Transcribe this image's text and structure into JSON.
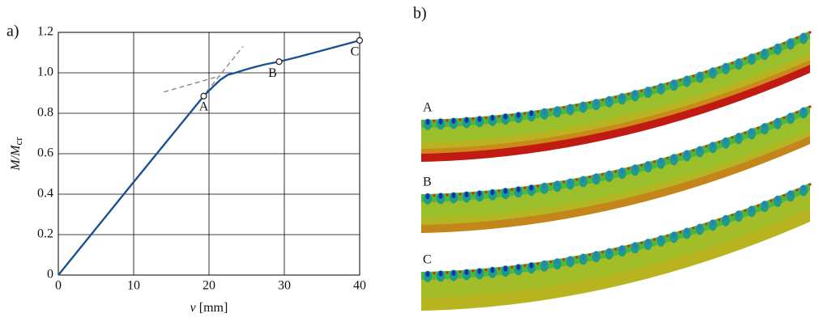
{
  "chart_data": {
    "type": "line",
    "panel_label": "a)",
    "xlabel_var": "v",
    "xlabel_unit": "[mm]",
    "ylabel_main": "M/M",
    "ylabel_sub": "cr",
    "xlim": [
      0,
      40
    ],
    "ylim": [
      0,
      1.2
    ],
    "xticks": [
      0,
      10,
      20,
      30,
      40
    ],
    "yticks": [
      0,
      0.2,
      0.4,
      0.6,
      0.8,
      {
        "value": 1,
        "label": "1.0"
      },
      1.2
    ],
    "grid": true,
    "series": [
      {
        "color": "#1a5190",
        "x": [
          0,
          10,
          19.3,
          20.5,
          21.5,
          22.5,
          23.5,
          24.5,
          26,
          27.5,
          29.3,
          32,
          35,
          38,
          40
        ],
        "y": [
          0,
          0.46,
          0.885,
          0.93,
          0.965,
          0.99,
          1.0,
          1.012,
          1.028,
          1.042,
          1.055,
          1.08,
          1.11,
          1.14,
          1.16
        ]
      }
    ],
    "points": [
      {
        "label": "A",
        "x": 19.3,
        "y": 0.885
      },
      {
        "label": "B",
        "x": 29.3,
        "y": 1.055
      },
      {
        "label": "C",
        "x": 40,
        "y": 1.16
      }
    ],
    "guides": [
      {
        "color": "#888888",
        "x": [
          14,
          21.5
        ],
        "y": [
          0.905,
          0.985
        ]
      },
      {
        "color": "#888888",
        "x": [
          19,
          24.5
        ],
        "y": [
          0.875,
          1.13
        ]
      }
    ]
  },
  "panel_b": {
    "label": "b)",
    "strips": [
      "A",
      "B",
      "C"
    ]
  }
}
